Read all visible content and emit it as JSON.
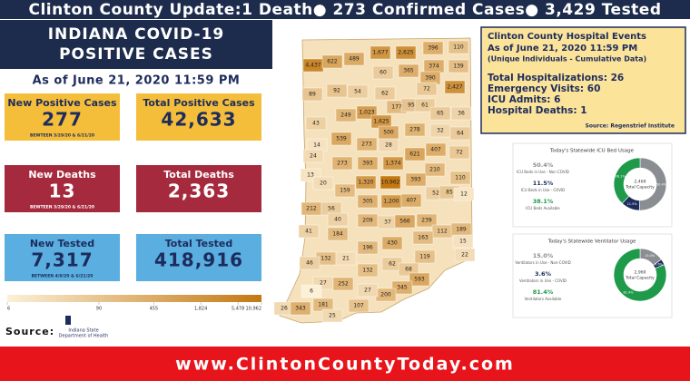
{
  "header": {
    "title": "Clinton County Update:1 Death● 273 Confirmed Cases● 3,429 Tested"
  },
  "left": {
    "title_line1": "INDIANA COVID-19",
    "title_line2": "POSITIVE CASES",
    "as_of": "As of June 21, 2020 11:59 PM",
    "boxes": [
      {
        "label": "New Positive Cases",
        "value": "277",
        "note": "BEWTEEN 3/29/20 & 6/21/20"
      },
      {
        "label": "Total Positive Cases",
        "value": "42,633"
      },
      {
        "label": "New Deaths",
        "value": "13",
        "note": "BEWTEEN 3/29/20 & 6/21/20"
      },
      {
        "label": "Total Deaths",
        "value": "2,363"
      },
      {
        "label": "New Tested",
        "value": "7,317",
        "note": "BETWEEN 4/9/20 & 6/21/20"
      },
      {
        "label": "Total Tested",
        "value": "418,916"
      }
    ]
  },
  "source": {
    "label": "Source:",
    "logo_line1": "Indiana State",
    "logo_line2": "Department of Health"
  },
  "map": {
    "counties": [
      {
        "value": 4437,
        "label": "4,437"
      },
      622,
      489,
      {
        "value": 1677,
        "label": "1,677"
      },
      {
        "value": 2625,
        "label": "2,625"
      },
      396,
      110,
      60,
      365,
      374,
      139,
      89,
      92,
      54,
      62,
      390,
      72,
      {
        "value": 2427,
        "label": "2,427"
      },
      249,
      {
        "value": 1023,
        "label": "1,023"
      },
      {
        "value": 1625,
        "label": "1,625"
      },
      177,
      95,
      61,
      65,
      36,
      43,
      500,
      278,
      32,
      64,
      14,
      539,
      273,
      28,
      621,
      407,
      72,
      24,
      273,
      393,
      {
        "value": 1374,
        "label": "1,374"
      },
      210,
      110,
      13,
      20,
      159,
      {
        "value": 1320,
        "label": "1,320"
      },
      {
        "value": 10962,
        "label": "10,962"
      },
      393,
      52,
      85,
      12,
      212,
      56,
      305,
      {
        "value": 1200,
        "label": "1,200"
      },
      407,
      40,
      209,
      37,
      566,
      239,
      112,
      189,
      41,
      184,
      196,
      430,
      163,
      15,
      132,
      21,
      132,
      62,
      119,
      22,
      46,
      68,
      593,
      27,
      6,
      252,
      345,
      200,
      27,
      26,
      343,
      181,
      25,
      107
    ],
    "scale_ticks": [
      6,
      90,
      455,
      {
        "value": 1824,
        "label": "1,824"
      },
      {
        "value": 5478,
        "label": "5,478"
      },
      {
        "value": 10962,
        "label": "10,962"
      }
    ]
  },
  "hospital": {
    "title": "Clinton County Hospital Events",
    "as_of": "As of June 21, 2020 11:59 PM",
    "subtitle": "(Unique Individuals - Cumulative Data)",
    "lines": [
      "Total Hospitalizations: 26",
      "Emergency Visits: 60",
      "ICU Admits: 6",
      "Hospital Deaths: 1"
    ],
    "source": "Source: Regenstrief Institute"
  },
  "cards": [
    {
      "title": "Today's Statewide ICU Bed Usage",
      "center_value": "2,469",
      "center_label": "Total Capacity",
      "items": [
        {
          "value": 50.4,
          "label": "50.4%",
          "desc": "ICU Beds in Use - Non COVID",
          "color": "#8a8d91"
        },
        {
          "value": 11.5,
          "label": "11.5%",
          "desc": "ICU Beds in Use - COVID",
          "color": "#1d2c5c"
        },
        {
          "value": 38.1,
          "label": "38.1%",
          "desc": "ICU Beds Available",
          "color": "#1e9a4a"
        }
      ]
    },
    {
      "title": "Today's Statewide Ventilator Usage",
      "center_value": "2,960",
      "center_label": "Total Capacity",
      "items": [
        {
          "value": 15.0,
          "label": "15.0%",
          "desc": "Ventilators in Use - Non-COVID",
          "color": "#8a8d91"
        },
        {
          "value": 3.6,
          "label": "3.6%",
          "desc": "Ventilators in Use - COVID",
          "color": "#1d2c5c"
        },
        {
          "value": 81.4,
          "label": "81.4%",
          "desc": "Ventilators Available",
          "color": "#1e9a4a"
        }
      ]
    }
  ],
  "footer": {
    "url": "www.ClintonCountyToday.com"
  }
}
